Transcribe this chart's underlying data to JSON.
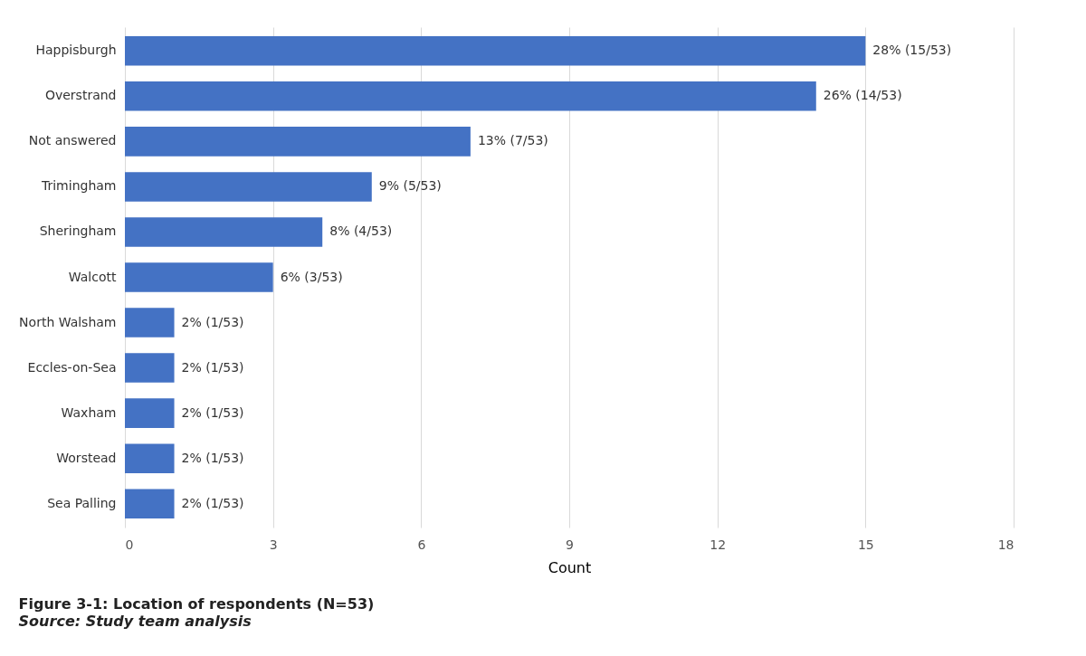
{
  "chart_data": {
    "type": "bar",
    "orientation": "horizontal",
    "title": "Figure 3-1: Location of respondents (N=53)",
    "annotations": [
      "Source:  Study team analysis"
    ],
    "xlabel": "Count",
    "categories": [
      "Happisburgh",
      "Overstrand",
      "Not answered",
      "Trimingham",
      "Sheringham",
      "Walcott",
      "North Walsham",
      "Eccles-on-Sea",
      "Waxham",
      "Worstead",
      "Sea Palling"
    ],
    "values": [
      15,
      14,
      7,
      5,
      4,
      3,
      1,
      1,
      1,
      1,
      1
    ],
    "value_labels": [
      "28% (15/53)",
      "26% (14/53)",
      "13% (7/53)",
      "9% (5/53)",
      "8% (4/53)",
      "6% (3/53)",
      "2% (1/53)",
      "2% (1/53)",
      "2% (1/53)",
      "2% (1/53)",
      "2% (1/53)"
    ],
    "color": "#4472c4",
    "xlim": [
      0,
      18
    ],
    "xticks": [
      0,
      3,
      6,
      9,
      12,
      15,
      18
    ],
    "grid": "x"
  }
}
